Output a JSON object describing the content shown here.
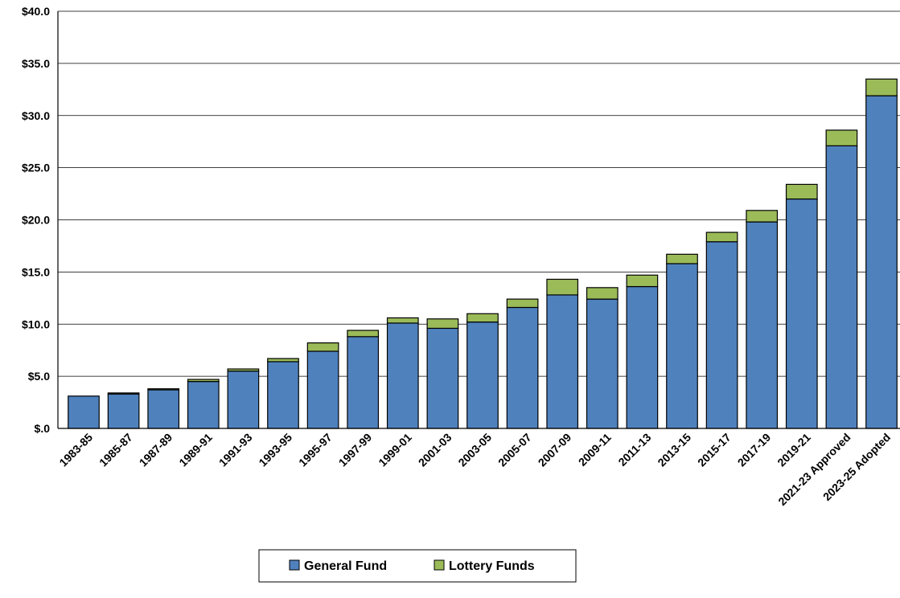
{
  "chart_data": {
    "type": "bar",
    "stacked": true,
    "categories": [
      "1983-85",
      "1985-87",
      "1987-89",
      "1989-91",
      "1991-93",
      "1993-95",
      "1995-97",
      "1997-99",
      "1999-01",
      "2001-03",
      "2003-05",
      "2005-07",
      "2007-09",
      "2009-11",
      "2011-13",
      "2013-15",
      "2015-17",
      "2017-19",
      "2019-21",
      "2021-23 Approved",
      "2023-25 Adopted"
    ],
    "series": [
      {
        "name": "General Fund",
        "color": "#4F81BD",
        "values": [
          3.1,
          3.3,
          3.7,
          4.5,
          5.5,
          6.4,
          7.4,
          8.8,
          10.1,
          9.6,
          10.2,
          11.6,
          12.8,
          12.4,
          13.6,
          15.8,
          17.9,
          19.8,
          22.0,
          27.1,
          31.9
        ]
      },
      {
        "name": "Lottery Funds",
        "color": "#9BBB59",
        "values": [
          0.0,
          0.1,
          0.1,
          0.2,
          0.2,
          0.3,
          0.8,
          0.6,
          0.5,
          0.9,
          0.8,
          0.8,
          1.5,
          1.1,
          1.1,
          0.9,
          0.9,
          1.1,
          1.4,
          1.5,
          1.6
        ]
      }
    ],
    "ylim": [
      0,
      40
    ],
    "yticks": [
      0,
      5,
      10,
      15,
      20,
      25,
      30,
      35,
      40
    ],
    "ytick_labels": [
      "$.0",
      "$5.0",
      "$10.0",
      "$15.0",
      "$20.0",
      "$25.0",
      "$30.0",
      "$35.0",
      "$40.0"
    ],
    "grid": true,
    "legend_position": "bottom-center",
    "title": "",
    "xlabel": "",
    "ylabel": ""
  }
}
